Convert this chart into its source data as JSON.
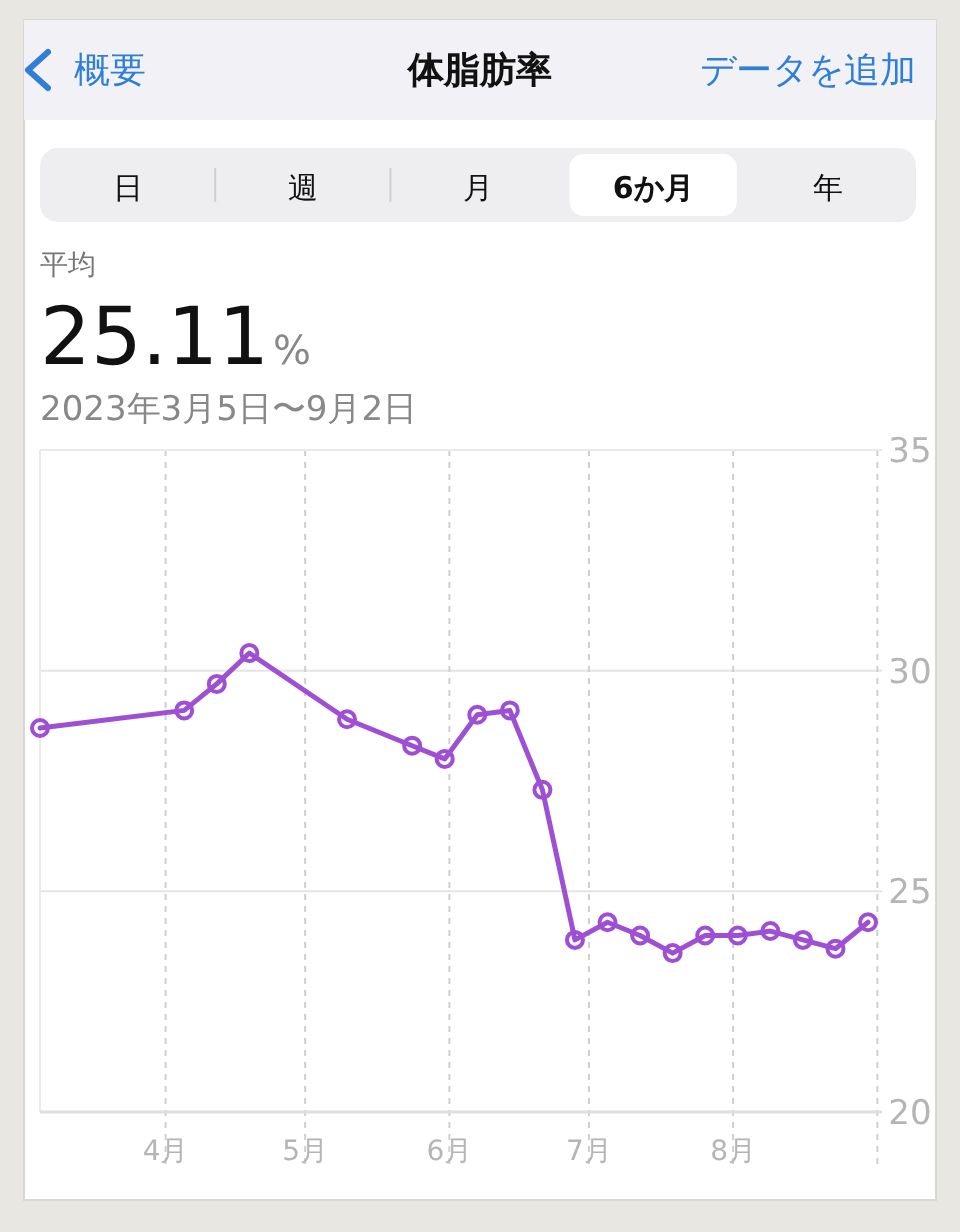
{
  "chart_data": {
    "type": "line",
    "title": "体脂肪率",
    "annotations": [
      "概要",
      "データを追加",
      "日",
      "週",
      "月",
      "6か月",
      "年",
      "平均",
      "25.11",
      "%",
      "2023年3月5日〜9月2日"
    ],
    "x": [
      "2023-03-05",
      "2023-04-05",
      "2023-04-12",
      "2023-04-19",
      "2023-05-10",
      "2023-05-24",
      "2023-05-31",
      "2023-06-07",
      "2023-06-14",
      "2023-06-21",
      "2023-06-28",
      "2023-07-05",
      "2023-07-12",
      "2023-07-19",
      "2023-07-26",
      "2023-08-02",
      "2023-08-09",
      "2023-08-16",
      "2023-08-23",
      "2023-08-30"
    ],
    "series": [
      {
        "color": "#9f4fd3",
        "values": [
          28.7,
          29.1,
          29.7,
          30.4,
          28.9,
          28.3,
          28.0,
          29.0,
          29.1,
          27.3,
          23.9,
          24.3,
          24.0,
          23.6,
          24.0,
          24.0,
          24.1,
          23.9,
          23.7,
          24.3
        ]
      }
    ],
    "xlim": [
      "2023-03-05",
      "2023-09-02"
    ],
    "xticks": [
      {
        "value": "2023-04-01",
        "label": "4月"
      },
      {
        "value": "2023-05-01",
        "label": "5月"
      },
      {
        "value": "2023-06-01",
        "label": "6月"
      },
      {
        "value": "2023-07-01",
        "label": "7月"
      },
      {
        "value": "2023-08-01",
        "label": "8月"
      },
      {
        "value": "2023-09-01",
        "label": null
      }
    ],
    "ylim": [
      20,
      35
    ],
    "yticks": [
      20,
      25,
      30,
      35
    ],
    "grid": true,
    "marker": "circle",
    "line_style": "solid"
  }
}
